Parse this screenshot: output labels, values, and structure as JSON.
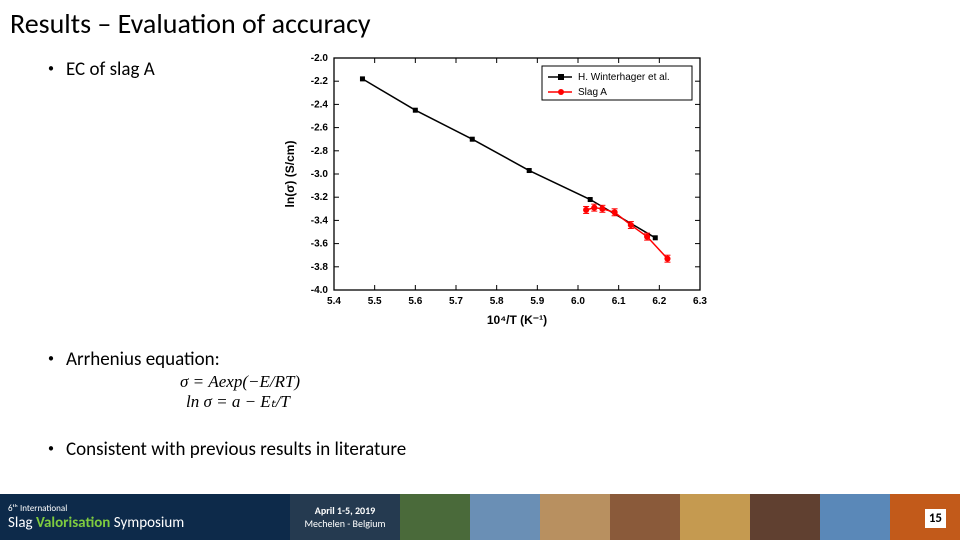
{
  "title": "Results – Evaluation of accuracy",
  "bullets": {
    "b1": "EC of slag A",
    "b2": "Arrhenius equation:",
    "b3": "Consistent with previous results in literature"
  },
  "equations": {
    "eq1": "σ = Aexp(−E/RT)",
    "eq2": "ln σ = a − Eₜ/T"
  },
  "chart": {
    "type": "scatter-line",
    "xlabel": "10⁴/T (K⁻¹)",
    "ylabel": "ln(σ) (S/cm)",
    "xlim": [
      5.4,
      6.3
    ],
    "ylim": [
      -4.0,
      -2.0
    ],
    "xtick_step": 0.1,
    "ytick_step": 0.2,
    "xticks": [
      "5.4",
      "5.5",
      "5.6",
      "5.7",
      "5.8",
      "5.9",
      "6.0",
      "6.1",
      "6.2",
      "6.3"
    ],
    "yticks": [
      "-2.0",
      "-2.2",
      "-2.4",
      "-2.6",
      "-2.8",
      "-3.0",
      "-3.2",
      "-3.4",
      "-3.6",
      "-3.8",
      "-4.0"
    ],
    "tick_fontsize": 10,
    "label_fontsize": 12,
    "background_color": "#ffffff",
    "axis_color": "#000000",
    "legend": {
      "position": "top-right",
      "border_color": "#000000",
      "items": [
        {
          "label": "H. Winterhager et al.",
          "marker": "square",
          "color": "#000000",
          "line": true
        },
        {
          "label": "Slag A",
          "marker": "circle",
          "color": "#ff0000",
          "line": true
        }
      ]
    },
    "series": [
      {
        "name": "H. Winterhager et al.",
        "color": "#000000",
        "marker": "square",
        "marker_size": 5,
        "line_width": 1.5,
        "points": [
          {
            "x": 5.47,
            "y": -2.18
          },
          {
            "x": 5.6,
            "y": -2.45
          },
          {
            "x": 5.74,
            "y": -2.7
          },
          {
            "x": 5.88,
            "y": -2.97
          },
          {
            "x": 6.03,
            "y": -3.22
          },
          {
            "x": 6.19,
            "y": -3.55
          }
        ]
      },
      {
        "name": "Slag A",
        "color": "#ff0000",
        "marker": "circle",
        "marker_size": 4,
        "line_width": 1.5,
        "error_bar": 0.03,
        "points": [
          {
            "x": 6.02,
            "y": -3.31
          },
          {
            "x": 6.04,
            "y": -3.29
          },
          {
            "x": 6.06,
            "y": -3.3
          },
          {
            "x": 6.09,
            "y": -3.33
          },
          {
            "x": 6.13,
            "y": -3.44
          },
          {
            "x": 6.17,
            "y": -3.54
          },
          {
            "x": 6.22,
            "y": -3.73
          }
        ]
      }
    ]
  },
  "footer": {
    "symposium_small": "6ᵗʰ International",
    "symposium_main_a": "Slag ",
    "symposium_main_b": "Valorisation",
    "symposium_main_c": " Symposium",
    "date": "April 1-5, 2019",
    "place": "Mechelen - Belgium",
    "collage_colors": [
      "#4a6a3a",
      "#6a8fb5",
      "#b89060",
      "#8a5a3a",
      "#c59a50",
      "#604030",
      "#5a88b8",
      "#c25a1a"
    ]
  },
  "page_number": "15"
}
